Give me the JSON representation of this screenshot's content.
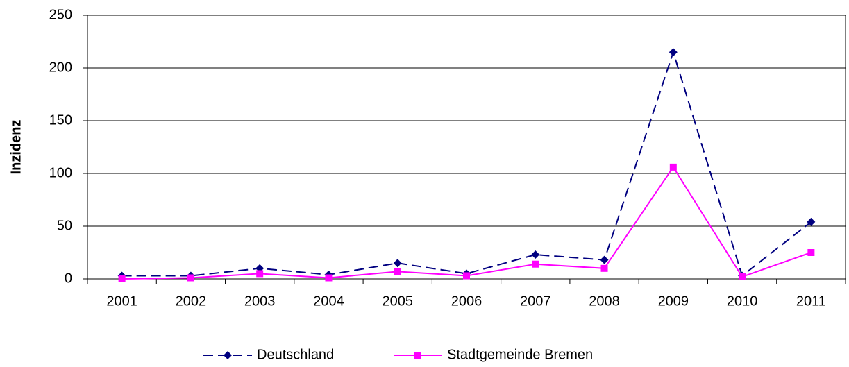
{
  "chart_data": {
    "type": "line",
    "ylabel": "Inzidenz",
    "categories": [
      "2001",
      "2002",
      "2003",
      "2004",
      "2005",
      "2006",
      "2007",
      "2008",
      "2009",
      "2010",
      "2011"
    ],
    "series": [
      {
        "name": "Deutschland",
        "color": "#000080",
        "dash": true,
        "marker": "diamond",
        "values": [
          3,
          3,
          10,
          4,
          15,
          5,
          23,
          18,
          215,
          3,
          54
        ]
      },
      {
        "name": "Stadtgemeinde Bremen",
        "color": "#ff00ff",
        "dash": false,
        "marker": "square",
        "values": [
          0,
          1,
          5,
          1,
          7,
          3,
          14,
          10,
          106,
          2,
          25
        ]
      }
    ],
    "ylim": [
      0,
      250
    ],
    "yticks": [
      0,
      50,
      100,
      150,
      200,
      250
    ],
    "grid": true,
    "legend": "bottom"
  }
}
